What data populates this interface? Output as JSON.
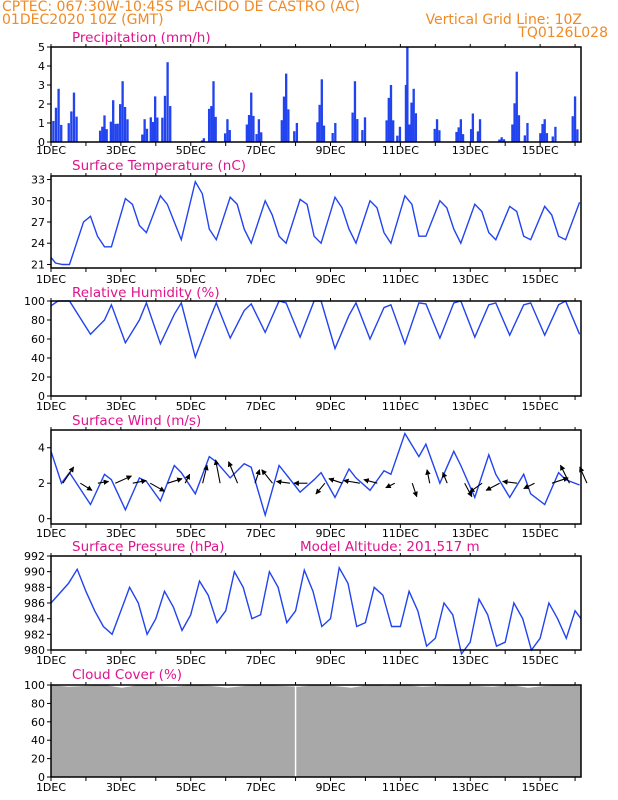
{
  "header": {
    "line1": "CPTEC:  067:30W-10:45S  PLACIDO DE CASTRO (AC)",
    "line2_left": "01DEC2020 10Z (GMT)",
    "line2_right": "Vertical Grid Line: 10Z",
    "line3_right": "TQ0126L028"
  },
  "colors": {
    "title": "#e0148c",
    "header": "#f08a24",
    "series": "#2244ee",
    "cloud": "#a8a8a8",
    "arrow": "#000000"
  },
  "x_labels": [
    "1DEC",
    "3DEC",
    "5DEC",
    "7DEC",
    "9DEC",
    "11DEC",
    "13DEC",
    "15DEC"
  ],
  "chart_data": [
    {
      "type": "bar",
      "title": "Precipitation (mm/h)",
      "ylim": [
        0,
        5
      ],
      "yticks": [
        0,
        1,
        2,
        3,
        4,
        5
      ],
      "xrange_days": [
        0,
        15.17
      ],
      "events": [
        {
          "center": 0.18,
          "width": 0.3,
          "peak": 2.8
        },
        {
          "center": 0.62,
          "width": 0.3,
          "peak": 2.6
        },
        {
          "center": 1.5,
          "width": 0.25,
          "peak": 1.4
        },
        {
          "center": 1.78,
          "width": 0.2,
          "peak": 2.2
        },
        {
          "center": 2.05,
          "width": 0.35,
          "peak": 3.2
        },
        {
          "center": 2.68,
          "width": 0.2,
          "peak": 1.2
        },
        {
          "center": 2.95,
          "width": 0.25,
          "peak": 2.4
        },
        {
          "center": 3.3,
          "width": 0.3,
          "peak": 4.2
        },
        {
          "center": 4.35,
          "width": 0.1,
          "peak": 0.2
        },
        {
          "center": 4.62,
          "width": 0.25,
          "peak": 3.2
        },
        {
          "center": 5.05,
          "width": 0.2,
          "peak": 1.2
        },
        {
          "center": 5.7,
          "width": 0.25,
          "peak": 2.6
        },
        {
          "center": 5.95,
          "width": 0.2,
          "peak": 1.2
        },
        {
          "center": 6.7,
          "width": 0.25,
          "peak": 3.6
        },
        {
          "center": 7.0,
          "width": 0.15,
          "peak": 1.0
        },
        {
          "center": 7.72,
          "width": 0.25,
          "peak": 3.3
        },
        {
          "center": 8.1,
          "width": 0.15,
          "peak": 1.0
        },
        {
          "center": 8.7,
          "width": 0.2,
          "peak": 3.2
        },
        {
          "center": 8.95,
          "width": 0.15,
          "peak": 1.3
        },
        {
          "center": 9.7,
          "width": 0.25,
          "peak": 3.0
        },
        {
          "center": 9.95,
          "width": 0.15,
          "peak": 0.8
        },
        {
          "center": 10.18,
          "width": 0.08,
          "peak": 5.0
        },
        {
          "center": 10.35,
          "width": 0.25,
          "peak": 2.8
        },
        {
          "center": 11.05,
          "width": 0.2,
          "peak": 1.2
        },
        {
          "center": 11.7,
          "width": 0.25,
          "peak": 1.2
        },
        {
          "center": 12.05,
          "width": 0.1,
          "peak": 1.5
        },
        {
          "center": 12.25,
          "width": 0.12,
          "peak": 1.2
        },
        {
          "center": 12.9,
          "width": 0.2,
          "peak": 0.25
        },
        {
          "center": 13.3,
          "width": 0.25,
          "peak": 3.7
        },
        {
          "center": 13.6,
          "width": 0.15,
          "peak": 1.0
        },
        {
          "center": 14.1,
          "width": 0.25,
          "peak": 1.2
        },
        {
          "center": 14.4,
          "width": 0.15,
          "peak": 0.8
        },
        {
          "center": 15.0,
          "width": 0.2,
          "peak": 2.4
        }
      ]
    },
    {
      "type": "line",
      "title": "Surface Temperature (nC)",
      "ylim": [
        20.5,
        33.5
      ],
      "yticks": [
        21,
        24,
        27,
        30,
        33
      ],
      "x_days": [
        0,
        0.13,
        0.33,
        0.53,
        0.93,
        1.13,
        1.33,
        1.53,
        1.73,
        2.13,
        2.33,
        2.53,
        2.73,
        3.13,
        3.33,
        3.53,
        3.73,
        4.13,
        4.33,
        4.53,
        4.73,
        5.13,
        5.33,
        5.53,
        5.73,
        6.13,
        6.33,
        6.53,
        6.73,
        7.13,
        7.33,
        7.53,
        7.73,
        8.13,
        8.33,
        8.53,
        8.73,
        9.13,
        9.33,
        9.53,
        9.73,
        10.13,
        10.33,
        10.53,
        10.73,
        11.13,
        11.33,
        11.53,
        11.73,
        12.13,
        12.33,
        12.53,
        12.73,
        13.13,
        13.33,
        13.53,
        13.73,
        14.13,
        14.33,
        14.53,
        14.73,
        15.13
      ],
      "values": [
        22.0,
        21.2,
        21.0,
        21.0,
        27.0,
        27.8,
        25.0,
        23.5,
        23.5,
        30.3,
        29.5,
        26.5,
        25.5,
        30.7,
        29.5,
        27.0,
        24.5,
        32.7,
        31.0,
        26.0,
        24.5,
        30.5,
        29.5,
        26.0,
        24.0,
        30.0,
        28.0,
        25.0,
        24.0,
        30.2,
        29.5,
        25.0,
        24.0,
        30.5,
        29.0,
        26.0,
        24.0,
        30.0,
        29.0,
        25.5,
        24.0,
        30.7,
        29.5,
        25.0,
        25.0,
        30.0,
        29.0,
        26.0,
        24.0,
        29.5,
        28.5,
        25.5,
        24.5,
        29.2,
        28.5,
        25.0,
        24.5,
        29.2,
        28.0,
        25.0,
        24.5,
        29.8
      ]
    },
    {
      "type": "line",
      "title": "Relative Humidity (%)",
      "ylim": [
        0,
        100
      ],
      "yticks": [
        0,
        20,
        40,
        60,
        80,
        100
      ],
      "x_days": [
        0,
        0.2,
        0.53,
        1.13,
        1.53,
        1.73,
        2.13,
        2.53,
        2.73,
        3.13,
        3.53,
        3.73,
        4.13,
        4.53,
        4.73,
        5.13,
        5.53,
        5.73,
        6.13,
        6.53,
        6.73,
        7.13,
        7.53,
        7.73,
        8.13,
        8.53,
        8.73,
        9.13,
        9.53,
        9.73,
        10.13,
        10.53,
        10.73,
        11.13,
        11.53,
        11.73,
        12.13,
        12.53,
        12.73,
        13.13,
        13.53,
        13.73,
        14.13,
        14.53,
        14.73,
        15.13
      ],
      "values": [
        95,
        100,
        100,
        65,
        80,
        96,
        56,
        80,
        98,
        55,
        86,
        98,
        41,
        80,
        98,
        61,
        90,
        97,
        67,
        100,
        98,
        62,
        100,
        100,
        50,
        85,
        98,
        60,
        93,
        96,
        55,
        98,
        97,
        61,
        98,
        100,
        62,
        96,
        98,
        64,
        96,
        98,
        64,
        96,
        100,
        65
      ]
    },
    {
      "type": "line",
      "title": "Surface Wind (m/s)",
      "ylim": [
        -0.3,
        5
      ],
      "yticks": [
        0,
        2,
        4
      ],
      "x_days": [
        0,
        0.3,
        0.53,
        1.13,
        1.53,
        1.73,
        2.13,
        2.53,
        2.73,
        3.13,
        3.53,
        3.73,
        4.13,
        4.53,
        4.73,
        5.13,
        5.53,
        5.73,
        6.13,
        6.53,
        6.73,
        7.13,
        7.53,
        7.73,
        8.13,
        8.53,
        8.73,
        9.13,
        9.53,
        9.73,
        10.13,
        10.53,
        10.73,
        11.13,
        11.53,
        11.73,
        12.13,
        12.53,
        12.73,
        13.13,
        13.53,
        13.73,
        14.13,
        14.53,
        14.73,
        15.13
      ],
      "values": [
        3.8,
        2.0,
        2.6,
        0.8,
        2.5,
        2.2,
        0.5,
        2.3,
        2.1,
        1.0,
        3.0,
        2.6,
        1.4,
        3.5,
        3.2,
        2.3,
        3.1,
        2.9,
        0.2,
        3.0,
        2.5,
        1.5,
        2.2,
        2.6,
        1.2,
        2.8,
        2.3,
        1.6,
        2.7,
        2.5,
        4.8,
        3.5,
        4.2,
        2.0,
        3.8,
        3.0,
        1.2,
        3.6,
        2.5,
        1.2,
        2.5,
        1.4,
        0.8,
        2.6,
        2.2,
        1.9
      ],
      "vectors": [
        {
          "x_day": 0.68,
          "u": 1.2,
          "v": 1.8
        },
        {
          "x_day": 1.68,
          "u": 1.3,
          "v": -0.8
        },
        {
          "x_day": 2.68,
          "u": 1.2,
          "v": 0.2
        },
        {
          "x_day": 3.68,
          "u": 1.8,
          "v": 0.8
        },
        {
          "x_day": 4.68,
          "u": 1.5,
          "v": 0.3
        },
        {
          "x_day": 5.68,
          "u": 1.6,
          "v": -0.9
        },
        {
          "x_day": 6.68,
          "u": 1.6,
          "v": 0.5
        },
        {
          "x_day": 7.68,
          "u": 0.5,
          "v": 1.0
        },
        {
          "x_day": 8.68,
          "u": 0.5,
          "v": 2.0
        },
        {
          "x_day": 9.68,
          "u": -0.5,
          "v": 2.6
        },
        {
          "x_day": 10.68,
          "u": -1.0,
          "v": 2.4
        },
        {
          "x_day": 11.68,
          "u": 0.5,
          "v": 1.5
        },
        {
          "x_day": 12.68,
          "u": -1.2,
          "v": 1.5
        },
        {
          "x_day": 13.68,
          "u": -1.5,
          "v": 0.2
        },
        {
          "x_day": 14.68,
          "u": -1.5,
          "v": 0.0
        },
        {
          "x_day": 15.68,
          "u": -1.0,
          "v": -1.2
        },
        {
          "x_day": 16.68,
          "u": -1.5,
          "v": 0.5
        },
        {
          "x_day": 17.68,
          "u": -1.8,
          "v": 0.3
        },
        {
          "x_day": 18.68,
          "u": -1.5,
          "v": 0.4
        },
        {
          "x_day": 19.68,
          "u": -1.0,
          "v": -0.5
        },
        {
          "x_day": 20.68,
          "u": 0.5,
          "v": -1.5
        },
        {
          "x_day": 21.68,
          "u": -0.3,
          "v": 1.5
        },
        {
          "x_day": 22.68,
          "u": -0.5,
          "v": 1.2
        },
        {
          "x_day": 23.68,
          "u": 0.8,
          "v": -1.5
        },
        {
          "x_day": 24.68,
          "u": -1.4,
          "v": -1.0
        },
        {
          "x_day": 25.68,
          "u": -1.5,
          "v": -0.8
        },
        {
          "x_day": 26.68,
          "u": -1.6,
          "v": 0.2
        },
        {
          "x_day": 27.68,
          "u": -1.2,
          "v": -0.6
        },
        {
          "x_day": 28.68,
          "u": 1.8,
          "v": 0.6
        },
        {
          "x_day": 29.68,
          "u": -1.0,
          "v": 2.0
        },
        {
          "x_day": 30.68,
          "u": -0.8,
          "v": 1.8
        }
      ]
    },
    {
      "type": "line",
      "title": "Surface Pressure (hPa)",
      "annotation": "Model Altitude: 201.517 m",
      "ylim": [
        980,
        992
      ],
      "yticks": [
        980,
        982,
        984,
        986,
        988,
        990,
        992
      ],
      "x_days": [
        0,
        0.5,
        0.75,
        1.0,
        1.25,
        1.5,
        1.75,
        2.0,
        2.25,
        2.5,
        2.75,
        3.0,
        3.25,
        3.5,
        3.75,
        4.0,
        4.25,
        4.5,
        4.75,
        5.0,
        5.25,
        5.5,
        5.75,
        6.0,
        6.25,
        6.5,
        6.75,
        7.0,
        7.25,
        7.5,
        7.75,
        8.0,
        8.25,
        8.5,
        8.75,
        9.0,
        9.25,
        9.5,
        9.75,
        10.0,
        10.25,
        10.5,
        10.75,
        11.0,
        11.25,
        11.5,
        11.75,
        12.0,
        12.25,
        12.5,
        12.75,
        13.0,
        13.25,
        13.5,
        13.75,
        14.0,
        14.25,
        14.5,
        14.75,
        15.0,
        15.17
      ],
      "values": [
        986.0,
        988.5,
        990.3,
        987.5,
        985.0,
        983.0,
        982.0,
        985.0,
        988.0,
        986.0,
        982.0,
        984.0,
        987.5,
        985.5,
        982.5,
        984.5,
        988.8,
        987.0,
        983.5,
        985.0,
        990.0,
        988.0,
        984.0,
        984.5,
        990.0,
        988.0,
        983.5,
        985.0,
        990.2,
        987.5,
        983.0,
        984.0,
        990.5,
        988.5,
        983.0,
        983.5,
        988.0,
        987.0,
        983.0,
        983.0,
        987.5,
        985.0,
        980.5,
        981.5,
        986.0,
        984.5,
        979.5,
        981.0,
        986.5,
        984.5,
        980.5,
        981.0,
        986.0,
        984.0,
        980.0,
        981.5,
        986.0,
        984.0,
        981.5,
        985.0,
        984.0
      ]
    },
    {
      "type": "area",
      "title": "Cloud Cover (%)",
      "ylim": [
        0,
        100
      ],
      "yticks": [
        0,
        20,
        40,
        60,
        80,
        100
      ],
      "values_percent": [
        100,
        98,
        99,
        100,
        97,
        100,
        99,
        98,
        100,
        99,
        97,
        99,
        100,
        99,
        98,
        100,
        99,
        97,
        100,
        99,
        100,
        98,
        99,
        100,
        99,
        98,
        100,
        97,
        99,
        100,
        99
      ],
      "gap_day": 7.0
    }
  ]
}
